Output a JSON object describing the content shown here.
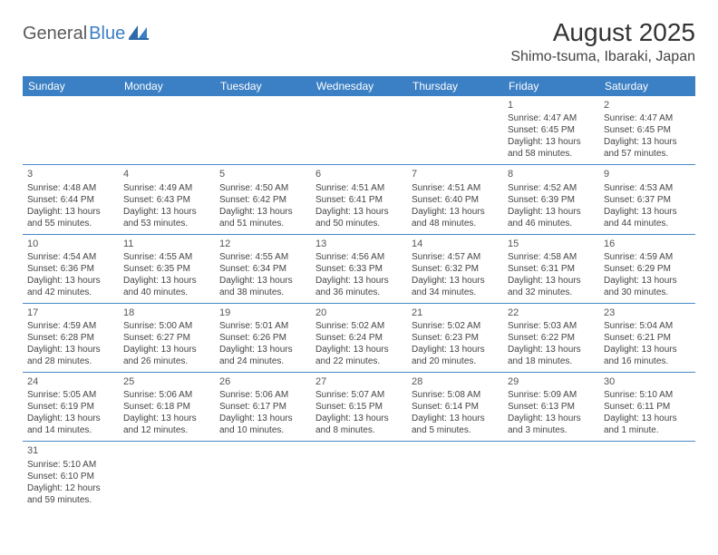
{
  "logo": {
    "part1": "General",
    "part2": "Blue"
  },
  "header": {
    "month_title": "August 2025",
    "location": "Shimo-tsuma, Ibaraki, Japan"
  },
  "colors": {
    "header_bg": "#3b7fc4",
    "border": "#4a8bc9",
    "text": "#444444",
    "title": "#333333"
  },
  "day_names": [
    "Sunday",
    "Monday",
    "Tuesday",
    "Wednesday",
    "Thursday",
    "Friday",
    "Saturday"
  ],
  "grid": [
    [
      null,
      null,
      null,
      null,
      null,
      {
        "n": "1",
        "sr": "Sunrise: 4:47 AM",
        "ss": "Sunset: 6:45 PM",
        "d1": "Daylight: 13 hours",
        "d2": "and 58 minutes."
      },
      {
        "n": "2",
        "sr": "Sunrise: 4:47 AM",
        "ss": "Sunset: 6:45 PM",
        "d1": "Daylight: 13 hours",
        "d2": "and 57 minutes."
      }
    ],
    [
      {
        "n": "3",
        "sr": "Sunrise: 4:48 AM",
        "ss": "Sunset: 6:44 PM",
        "d1": "Daylight: 13 hours",
        "d2": "and 55 minutes."
      },
      {
        "n": "4",
        "sr": "Sunrise: 4:49 AM",
        "ss": "Sunset: 6:43 PM",
        "d1": "Daylight: 13 hours",
        "d2": "and 53 minutes."
      },
      {
        "n": "5",
        "sr": "Sunrise: 4:50 AM",
        "ss": "Sunset: 6:42 PM",
        "d1": "Daylight: 13 hours",
        "d2": "and 51 minutes."
      },
      {
        "n": "6",
        "sr": "Sunrise: 4:51 AM",
        "ss": "Sunset: 6:41 PM",
        "d1": "Daylight: 13 hours",
        "d2": "and 50 minutes."
      },
      {
        "n": "7",
        "sr": "Sunrise: 4:51 AM",
        "ss": "Sunset: 6:40 PM",
        "d1": "Daylight: 13 hours",
        "d2": "and 48 minutes."
      },
      {
        "n": "8",
        "sr": "Sunrise: 4:52 AM",
        "ss": "Sunset: 6:39 PM",
        "d1": "Daylight: 13 hours",
        "d2": "and 46 minutes."
      },
      {
        "n": "9",
        "sr": "Sunrise: 4:53 AM",
        "ss": "Sunset: 6:37 PM",
        "d1": "Daylight: 13 hours",
        "d2": "and 44 minutes."
      }
    ],
    [
      {
        "n": "10",
        "sr": "Sunrise: 4:54 AM",
        "ss": "Sunset: 6:36 PM",
        "d1": "Daylight: 13 hours",
        "d2": "and 42 minutes."
      },
      {
        "n": "11",
        "sr": "Sunrise: 4:55 AM",
        "ss": "Sunset: 6:35 PM",
        "d1": "Daylight: 13 hours",
        "d2": "and 40 minutes."
      },
      {
        "n": "12",
        "sr": "Sunrise: 4:55 AM",
        "ss": "Sunset: 6:34 PM",
        "d1": "Daylight: 13 hours",
        "d2": "and 38 minutes."
      },
      {
        "n": "13",
        "sr": "Sunrise: 4:56 AM",
        "ss": "Sunset: 6:33 PM",
        "d1": "Daylight: 13 hours",
        "d2": "and 36 minutes."
      },
      {
        "n": "14",
        "sr": "Sunrise: 4:57 AM",
        "ss": "Sunset: 6:32 PM",
        "d1": "Daylight: 13 hours",
        "d2": "and 34 minutes."
      },
      {
        "n": "15",
        "sr": "Sunrise: 4:58 AM",
        "ss": "Sunset: 6:31 PM",
        "d1": "Daylight: 13 hours",
        "d2": "and 32 minutes."
      },
      {
        "n": "16",
        "sr": "Sunrise: 4:59 AM",
        "ss": "Sunset: 6:29 PM",
        "d1": "Daylight: 13 hours",
        "d2": "and 30 minutes."
      }
    ],
    [
      {
        "n": "17",
        "sr": "Sunrise: 4:59 AM",
        "ss": "Sunset: 6:28 PM",
        "d1": "Daylight: 13 hours",
        "d2": "and 28 minutes."
      },
      {
        "n": "18",
        "sr": "Sunrise: 5:00 AM",
        "ss": "Sunset: 6:27 PM",
        "d1": "Daylight: 13 hours",
        "d2": "and 26 minutes."
      },
      {
        "n": "19",
        "sr": "Sunrise: 5:01 AM",
        "ss": "Sunset: 6:26 PM",
        "d1": "Daylight: 13 hours",
        "d2": "and 24 minutes."
      },
      {
        "n": "20",
        "sr": "Sunrise: 5:02 AM",
        "ss": "Sunset: 6:24 PM",
        "d1": "Daylight: 13 hours",
        "d2": "and 22 minutes."
      },
      {
        "n": "21",
        "sr": "Sunrise: 5:02 AM",
        "ss": "Sunset: 6:23 PM",
        "d1": "Daylight: 13 hours",
        "d2": "and 20 minutes."
      },
      {
        "n": "22",
        "sr": "Sunrise: 5:03 AM",
        "ss": "Sunset: 6:22 PM",
        "d1": "Daylight: 13 hours",
        "d2": "and 18 minutes."
      },
      {
        "n": "23",
        "sr": "Sunrise: 5:04 AM",
        "ss": "Sunset: 6:21 PM",
        "d1": "Daylight: 13 hours",
        "d2": "and 16 minutes."
      }
    ],
    [
      {
        "n": "24",
        "sr": "Sunrise: 5:05 AM",
        "ss": "Sunset: 6:19 PM",
        "d1": "Daylight: 13 hours",
        "d2": "and 14 minutes."
      },
      {
        "n": "25",
        "sr": "Sunrise: 5:06 AM",
        "ss": "Sunset: 6:18 PM",
        "d1": "Daylight: 13 hours",
        "d2": "and 12 minutes."
      },
      {
        "n": "26",
        "sr": "Sunrise: 5:06 AM",
        "ss": "Sunset: 6:17 PM",
        "d1": "Daylight: 13 hours",
        "d2": "and 10 minutes."
      },
      {
        "n": "27",
        "sr": "Sunrise: 5:07 AM",
        "ss": "Sunset: 6:15 PM",
        "d1": "Daylight: 13 hours",
        "d2": "and 8 minutes."
      },
      {
        "n": "28",
        "sr": "Sunrise: 5:08 AM",
        "ss": "Sunset: 6:14 PM",
        "d1": "Daylight: 13 hours",
        "d2": "and 5 minutes."
      },
      {
        "n": "29",
        "sr": "Sunrise: 5:09 AM",
        "ss": "Sunset: 6:13 PM",
        "d1": "Daylight: 13 hours",
        "d2": "and 3 minutes."
      },
      {
        "n": "30",
        "sr": "Sunrise: 5:10 AM",
        "ss": "Sunset: 6:11 PM",
        "d1": "Daylight: 13 hours",
        "d2": "and 1 minute."
      }
    ],
    [
      {
        "n": "31",
        "sr": "Sunrise: 5:10 AM",
        "ss": "Sunset: 6:10 PM",
        "d1": "Daylight: 12 hours",
        "d2": "and 59 minutes."
      },
      null,
      null,
      null,
      null,
      null,
      null
    ]
  ]
}
